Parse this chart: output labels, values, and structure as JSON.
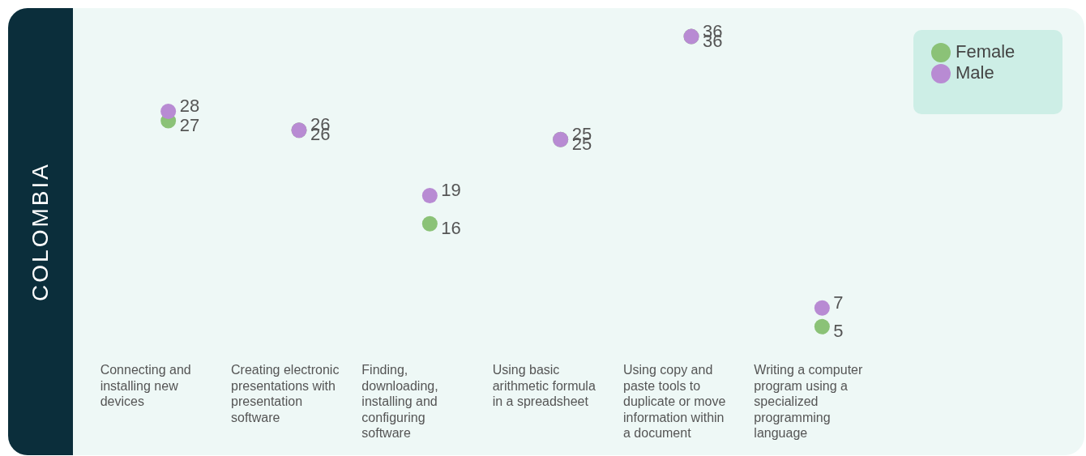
{
  "chart_data": {
    "type": "scatter",
    "title": "COLOMBIA",
    "categories": [
      "Connecting and installing new devices",
      "Creating electronic presentations with presentation software",
      "Finding, downloading, installing and configuring software",
      "Using basic arithmetic formula in a spreadsheet",
      "Using copy and paste tools to duplicate or move information within a document",
      "Writing a computer program using a specialized programming language"
    ],
    "series": [
      {
        "name": "Female",
        "color": "#8bc277",
        "values": [
          27,
          26,
          16,
          25,
          36,
          5
        ]
      },
      {
        "name": "Male",
        "color": "#b88bd3",
        "values": [
          28,
          26,
          19,
          25,
          36,
          7
        ]
      }
    ],
    "tick_labels": "x",
    "data_labels": true,
    "legend": "top right",
    "marker": "circle"
  }
}
